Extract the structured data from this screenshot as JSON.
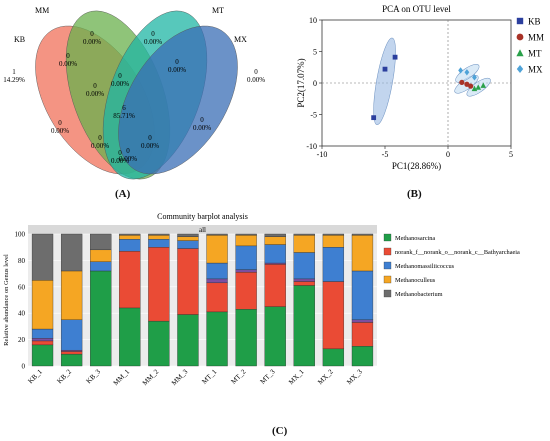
{
  "colors": {
    "KB": "#f0705a",
    "MM": "#6ab04c",
    "MT": "#1fb5a4",
    "MX": "#3a6eb5",
    "pca_KB": "#2b3f9e",
    "pca_MM": "#a83227",
    "pca_MT": "#2aa14a",
    "pca_MX": "#4fa3d8",
    "bar_Methanosarcina": "#1f9e48",
    "bar_norank": "#ea4b35",
    "bar_Methanomassiliicoccus": "#3e7fd1",
    "bar_Methanoculleus": "#f5a623",
    "bar_Methanobacterium": "#6d6d6d",
    "bar_purple": "#7b4fa0"
  },
  "panel_labels": {
    "a": "(A)",
    "b": "(B)",
    "c": "(C)"
  },
  "chart_data": [
    {
      "type": "venn",
      "sets": [
        "KB",
        "MM",
        "MT",
        "MX"
      ],
      "regions": [
        {
          "label": "1",
          "value": "14.29%"
        },
        {
          "label": "0",
          "value": "0.00%"
        },
        {
          "label": "0",
          "value": "0.00%"
        },
        {
          "label": "0",
          "value": "0.00%"
        },
        {
          "label": "0",
          "value": "0.00%"
        },
        {
          "label": "0",
          "value": "0.00%"
        },
        {
          "label": "0",
          "value": "0.00%"
        },
        {
          "label": "0",
          "value": "0.00%"
        },
        {
          "label": "6",
          "value": "85.71%"
        },
        {
          "label": "0",
          "value": "0.00%"
        },
        {
          "label": "0",
          "value": "0.00%"
        },
        {
          "label": "0",
          "value": "0.00%"
        },
        {
          "label": "0",
          "value": "0.00%"
        },
        {
          "label": "0",
          "value": "0.00%"
        },
        {
          "label": "0",
          "value": "0.00%"
        }
      ]
    },
    {
      "type": "scatter",
      "title": "PCA on OTU level",
      "xlabel": "PC1(28.86%)",
      "ylabel": "PC2(17.07%)",
      "xlim": [
        -10,
        5
      ],
      "ylim": [
        -10,
        10
      ],
      "xticks": [
        "-10",
        "-5",
        "0",
        "5"
      ],
      "yticks": [
        "-10",
        "-5",
        "0",
        "5",
        "10"
      ],
      "legend_position": "right",
      "series": [
        {
          "name": "KB",
          "marker": "square",
          "x": [
            -5.9,
            -5.0,
            -4.2
          ],
          "y": [
            -5.5,
            2.2,
            4.1
          ]
        },
        {
          "name": "MM",
          "marker": "circle",
          "x": [
            1.1,
            1.5,
            1.8
          ],
          "y": [
            0.1,
            -0.2,
            -0.5
          ]
        },
        {
          "name": "MT",
          "marker": "triangle",
          "x": [
            2.1,
            2.4,
            2.8
          ],
          "y": [
            -0.9,
            -0.7,
            -0.4
          ]
        },
        {
          "name": "MX",
          "marker": "diamond",
          "x": [
            1.0,
            1.5,
            2.1
          ],
          "y": [
            2.0,
            1.7,
            0.9
          ]
        }
      ]
    },
    {
      "type": "bar",
      "stacked": true,
      "title": "Community barplot analysis",
      "strip_label": "all",
      "ylabel": "Relative abundance on Genus level",
      "ylim": [
        0,
        100
      ],
      "yticks": [
        "0",
        "20",
        "40",
        "60",
        "80",
        "100"
      ],
      "categories": [
        "KB_1",
        "KB_2",
        "KB_3",
        "MM_1",
        "MM_2",
        "MM_3",
        "MT_1",
        "MT_2",
        "MT_3",
        "MX_1",
        "MX_2",
        "MX_3"
      ],
      "legend": [
        "Methanosarcina",
        "norank_f__norank_o__norank_c__Bathyarchaeia",
        "Methanomassiliicoccus",
        "Methanoculleus",
        "Methanobacterium"
      ],
      "series": [
        {
          "name": "Methanosarcina",
          "values": [
            16,
            9,
            72,
            44,
            34,
            39,
            41,
            43,
            45,
            61,
            13,
            15
          ]
        },
        {
          "name": "norank_f__norank_o__norank_c__Bathyarchaeia",
          "values": [
            3,
            2,
            0,
            43,
            56,
            50,
            22,
            28,
            32,
            3,
            51,
            18
          ]
        },
        {
          "name": "",
          "values": [
            2,
            1,
            0,
            0,
            0,
            0,
            3,
            2,
            1,
            2,
            0,
            2
          ]
        },
        {
          "name": "Methanomassiliicoccus",
          "values": [
            7,
            23,
            7,
            9,
            6,
            6,
            12,
            18,
            14,
            20,
            26,
            37
          ]
        },
        {
          "name": "Methanoculleus",
          "values": [
            37,
            37,
            9,
            3,
            3,
            3,
            21,
            8,
            6,
            13,
            9,
            27
          ]
        },
        {
          "name": "Methanobacterium",
          "values": [
            35,
            28,
            12,
            1,
            1,
            2,
            1,
            1,
            2,
            1,
            1,
            1
          ]
        }
      ]
    }
  ]
}
